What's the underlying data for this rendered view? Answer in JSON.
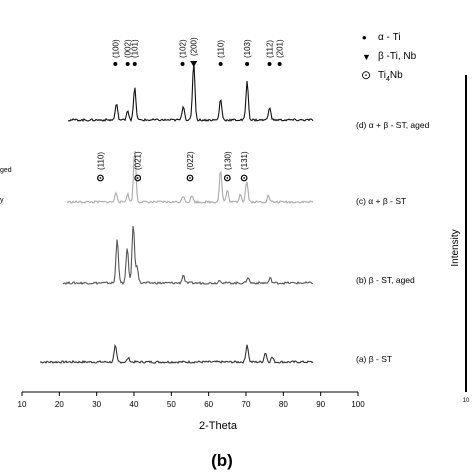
{
  "chart_data": {
    "type": "line",
    "xlabel": "2-Theta",
    "ylabel": "Intensity",
    "xlim": [
      10,
      100
    ],
    "x_ticks": [
      10,
      20,
      30,
      40,
      50,
      60,
      70,
      80,
      90,
      100
    ],
    "left_edge_labels": [
      "ged",
      "y"
    ],
    "right_axis_tick_label": "10",
    "panel_label": "(b)",
    "legend": [
      {
        "symbol": "•",
        "text": "α - Ti"
      },
      {
        "symbol": "▼",
        "text": "β -Ti, Nb"
      },
      {
        "symbol": "⊙",
        "text": "Ti",
        "sub": "4",
        "text2": "Nb"
      }
    ],
    "series": [
      {
        "name": "(a) β - ST",
        "color": "#333333",
        "peaks": [
          [
            35,
            1.0
          ],
          [
            38.5,
            0.25
          ],
          [
            70.3,
            1.1
          ],
          [
            75.2,
            0.6
          ],
          [
            77,
            0.3
          ]
        ]
      },
      {
        "name": "(b) β - ST, aged",
        "color": "#555555",
        "peaks": [
          [
            35.5,
            2.8
          ],
          [
            38.2,
            2.2
          ],
          [
            39.8,
            3.7
          ],
          [
            40.8,
            1.1
          ],
          [
            53.2,
            0.5
          ],
          [
            63,
            0.2
          ],
          [
            70.5,
            0.35
          ],
          [
            76.5,
            0.3
          ]
        ]
      },
      {
        "name": "(c) α + β - ST",
        "color": "#aaaaaa",
        "peaks": [
          [
            35.2,
            0.6
          ],
          [
            38.3,
            0.5
          ],
          [
            40.2,
            3.3
          ],
          [
            53.2,
            0.4
          ],
          [
            55.5,
            0.4
          ],
          [
            63.2,
            2.0
          ],
          [
            65,
            0.7
          ],
          [
            68.5,
            0.5
          ],
          [
            70.2,
            1.3
          ],
          [
            76,
            0.4
          ]
        ]
      },
      {
        "name": "(d) α + β - ST, aged",
        "color": "#111111",
        "peaks": [
          [
            35.3,
            1.0
          ],
          [
            38.3,
            0.6
          ],
          [
            40.2,
            2.0
          ],
          [
            53.2,
            0.9
          ],
          [
            56,
            3.6
          ],
          [
            63.2,
            1.3
          ],
          [
            70.3,
            2.4
          ],
          [
            76.3,
            0.8
          ]
        ]
      }
    ],
    "annotations": {
      "alpha_top": [
        {
          "label": "(100)",
          "x": 35
        },
        {
          "label": "(002)",
          "x": 38.3
        },
        {
          "label": "(101)",
          "x": 40.2
        },
        {
          "label": "(102)",
          "x": 53
        },
        {
          "label": "(110)",
          "x": 63.2
        },
        {
          "label": "(103)",
          "x": 70.3
        },
        {
          "label": "(112)",
          "x": 76.3
        },
        {
          "label": "(201)",
          "x": 79
        }
      ],
      "beta_top": [
        {
          "label": "(200)",
          "x": 56
        }
      ],
      "ti4nb_c": [
        {
          "label": "(110)",
          "x": 31
        },
        {
          "label": "(021)",
          "x": 41
        },
        {
          "label": "(022)",
          "x": 55
        },
        {
          "label": "(130)",
          "x": 65
        },
        {
          "label": "(131)",
          "x": 69.5
        }
      ]
    }
  }
}
